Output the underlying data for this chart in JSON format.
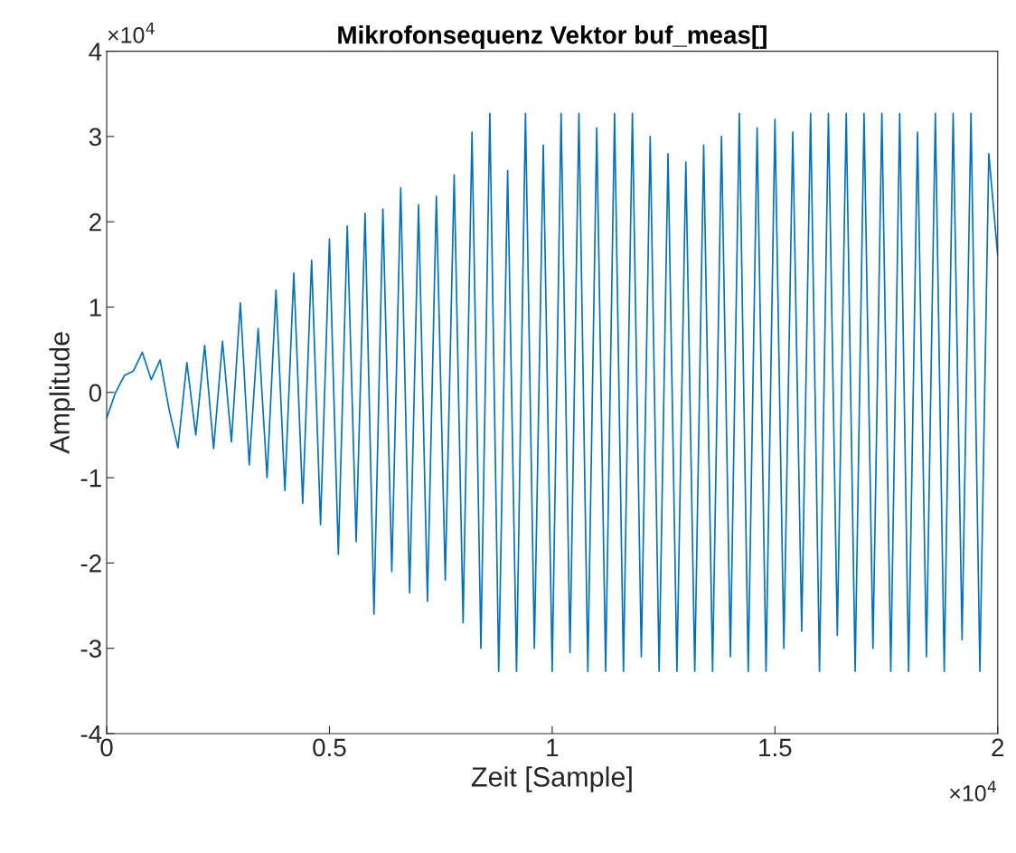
{
  "chart_data": {
    "type": "line",
    "title": "Mikrofonsequenz Vektor buf_meas[]",
    "xlabel": "Zeit [Sample]",
    "ylabel": "Amplitude",
    "annotations": [
      "×10$^{4}$",
      "×10$^{4}$"
    ],
    "x": [
      0,
      0.02,
      0.04,
      0.06,
      0.08,
      0.1,
      0.12,
      0.14,
      0.16,
      0.18,
      0.2,
      0.22,
      0.24,
      0.26,
      0.28,
      0.3,
      0.32,
      0.34,
      0.36,
      0.38,
      0.4,
      0.42,
      0.44,
      0.46,
      0.48,
      0.5,
      0.52,
      0.54,
      0.56,
      0.58,
      0.6,
      0.62,
      0.64,
      0.66,
      0.68,
      0.7,
      0.72,
      0.74,
      0.76,
      0.78,
      0.8,
      0.82,
      0.84,
      0.86,
      0.88,
      0.9,
      0.92,
      0.94,
      0.96,
      0.98,
      1.0,
      1.02,
      1.04,
      1.06,
      1.08,
      1.1,
      1.12,
      1.14,
      1.16,
      1.18,
      1.2,
      1.22,
      1.24,
      1.26,
      1.28,
      1.3,
      1.32,
      1.34,
      1.36,
      1.38,
      1.4,
      1.42,
      1.44,
      1.46,
      1.48,
      1.5,
      1.52,
      1.54,
      1.56,
      1.58,
      1.6,
      1.62,
      1.64,
      1.66,
      1.68,
      1.7,
      1.72,
      1.74,
      1.76,
      1.78,
      1.8,
      1.82,
      1.84,
      1.86,
      1.88,
      1.9,
      1.92,
      1.94,
      1.96,
      1.98,
      2.0
    ],
    "series": [
      {
        "color": "#0072bd",
        "values": [
          -0.3,
          0,
          0.2,
          0.25,
          0.47,
          0.15,
          0.38,
          -0.2,
          -0.65,
          0.35,
          -0.5,
          0.55,
          -0.66,
          0.6,
          -0.58,
          1.05,
          -0.85,
          0.75,
          -1.0,
          1.2,
          -1.15,
          1.4,
          -1.3,
          1.55,
          -1.55,
          1.8,
          -1.9,
          1.95,
          -1.75,
          2.1,
          -2.6,
          2.15,
          -2.1,
          2.4,
          -2.35,
          2.2,
          -2.45,
          2.3,
          -2.2,
          2.55,
          -2.7,
          3.05,
          -3.0,
          3.27,
          -3.27,
          2.6,
          -3.27,
          3.27,
          -3.0,
          2.9,
          -3.27,
          3.27,
          -3.05,
          3.27,
          -3.27,
          3.1,
          -3.27,
          3.27,
          -3.27,
          3.27,
          -3.1,
          3.0,
          -3.27,
          2.8,
          -3.27,
          2.7,
          -3.27,
          2.9,
          -3.27,
          3.0,
          -3.1,
          3.27,
          -3.27,
          3.1,
          -3.27,
          3.2,
          -3.0,
          3.05,
          -2.8,
          3.27,
          -3.27,
          3.27,
          -2.85,
          3.27,
          -3.27,
          3.27,
          -3.0,
          3.27,
          -3.27,
          3.27,
          -3.27,
          3.05,
          -3.1,
          3.27,
          -3.27,
          3.27,
          -2.9,
          3.27,
          -3.27,
          2.8,
          1.6
        ]
      }
    ],
    "xlim": [
      0,
      2
    ],
    "xticks": [
      0,
      0.5,
      1,
      1.5,
      2
    ],
    "ylim": [
      -4,
      4
    ],
    "yticks": [
      {
        "value": -4,
        "label": "-4"
      },
      {
        "value": -3,
        "label": "-3"
      },
      {
        "value": -2,
        "label": "-2"
      },
      {
        "value": -1,
        "label": "-1"
      },
      0,
      1,
      2,
      3,
      4
    ],
    "grid": false,
    "legend": false
  }
}
